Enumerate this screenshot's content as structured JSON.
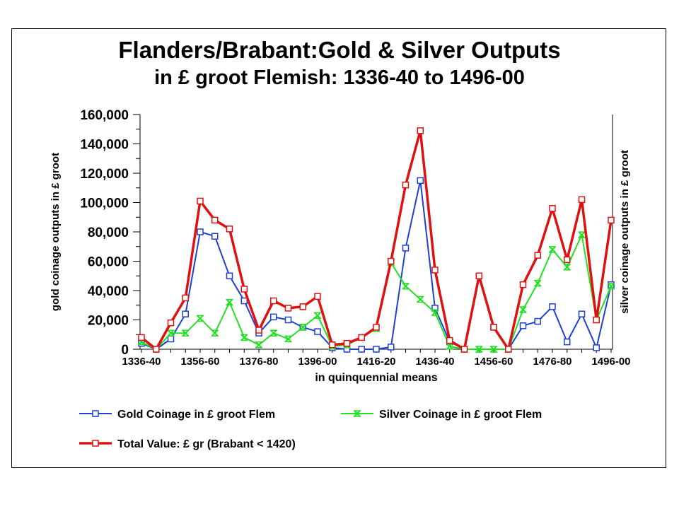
{
  "title": "Flanders/Brabant:Gold & Silver Outputs",
  "subtitle": "in £ groot Flemish: 1336-40 to 1496-00",
  "chart_data": {
    "type": "line",
    "title": "Flanders/Brabant:Gold & Silver Outputs",
    "subtitle": "in £ groot Flemish: 1336-40 to 1496-00",
    "xlabel": "in quinquennial means",
    "ylabel": "gold coinage outputs in £ groot",
    "y2label": "silver coinage outputs in £ groot",
    "ylim": [
      0,
      160000
    ],
    "yticks": [
      "0",
      "20,000",
      "40,000",
      "60,000",
      "80,000",
      "100,000",
      "120,000",
      "140,000",
      "160,000"
    ],
    "grid": false,
    "legend_position": "bottom",
    "x": [
      "1336-40",
      "1341-45",
      "1346-50",
      "1351-55",
      "1356-60",
      "1361-65",
      "1366-70",
      "1371-75",
      "1376-80",
      "1381-85",
      "1386-90",
      "1391-95",
      "1396-00",
      "1401-05",
      "1406-10",
      "1411-15",
      "1416-20",
      "1421-25",
      "1426-30",
      "1431-35",
      "1436-40",
      "1441-45",
      "1446-50",
      "1451-55",
      "1456-60",
      "1461-65",
      "1466-70",
      "1471-75",
      "1476-80",
      "1481-85",
      "1486-90",
      "1491-95",
      "1496-00"
    ],
    "x_tick_labels": [
      "1336-40",
      "1356-60",
      "1376-80",
      "1396-00",
      "1416-20",
      "1436-40",
      "1456-60",
      "1476-80",
      "1496-00"
    ],
    "series": [
      {
        "name": "Gold Coinage in £ groot Flem",
        "color": "#1f3fd6",
        "marker": "square",
        "values": [
          4000,
          0,
          7000,
          24000,
          80000,
          77000,
          50000,
          33000,
          11000,
          22000,
          20000,
          15000,
          12000,
          1000,
          0,
          0,
          0,
          1500,
          69000,
          115000,
          28000,
          5000,
          0,
          50000,
          15000,
          0,
          16000,
          19000,
          29000,
          5000,
          24000,
          1000,
          44000
        ]
      },
      {
        "name": "Silver Coinage in £ groot Flem",
        "color": "#22e022",
        "marker": "x",
        "values": [
          5000,
          0,
          11000,
          11000,
          21000,
          11000,
          32000,
          8000,
          3000,
          11000,
          7000,
          15000,
          23000,
          2000,
          3000,
          8000,
          14000,
          59000,
          43000,
          34000,
          25000,
          2000,
          0,
          0,
          0,
          0,
          27000,
          45000,
          68000,
          56000,
          78000,
          20000,
          43000
        ]
      },
      {
        "name": "Total Value: £ gr (Brabant < 1420)",
        "color": "#e01010",
        "marker": "square",
        "values": [
          8000,
          0,
          18000,
          35000,
          101000,
          88000,
          82000,
          41000,
          13000,
          33000,
          28000,
          29000,
          36000,
          3000,
          4000,
          8000,
          15000,
          60000,
          112000,
          149000,
          54000,
          6000,
          0,
          50000,
          15000,
          0,
          44000,
          64000,
          96000,
          61000,
          102000,
          20000,
          88000
        ]
      }
    ]
  }
}
